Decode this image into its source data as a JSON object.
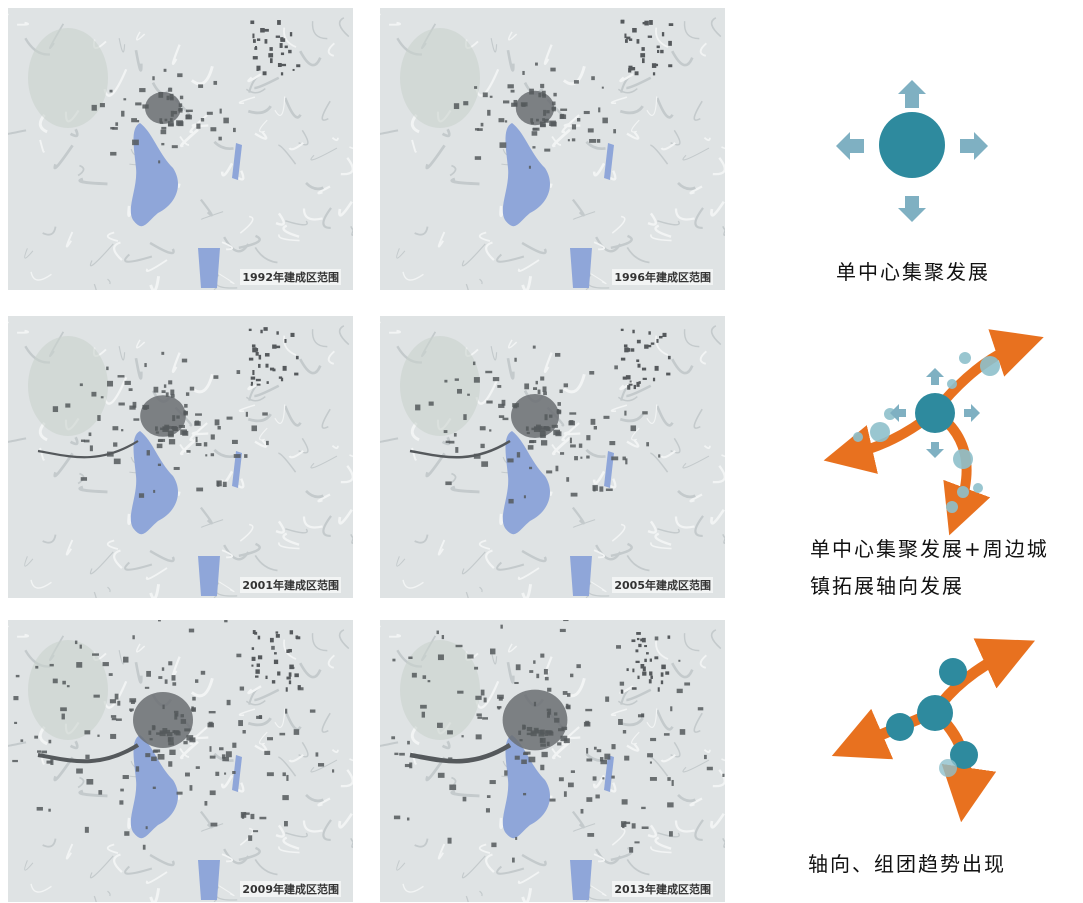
{
  "maps": [
    {
      "label": "1992年建成区范围"
    },
    {
      "label": "1996年建成区范围"
    },
    {
      "label": "2001年建成区范围"
    },
    {
      "label": "2005年建成区范围"
    },
    {
      "label": "2009年建成区范围"
    },
    {
      "label": "2013年建成区范围"
    }
  ],
  "stages": [
    {
      "caption": [
        "单中心集聚发展"
      ]
    },
    {
      "caption": [
        "单中心集聚发展+周边城",
        "镇拓展轴向发展"
      ]
    },
    {
      "caption": [
        "轴向、组团趋势出现"
      ]
    }
  ]
}
